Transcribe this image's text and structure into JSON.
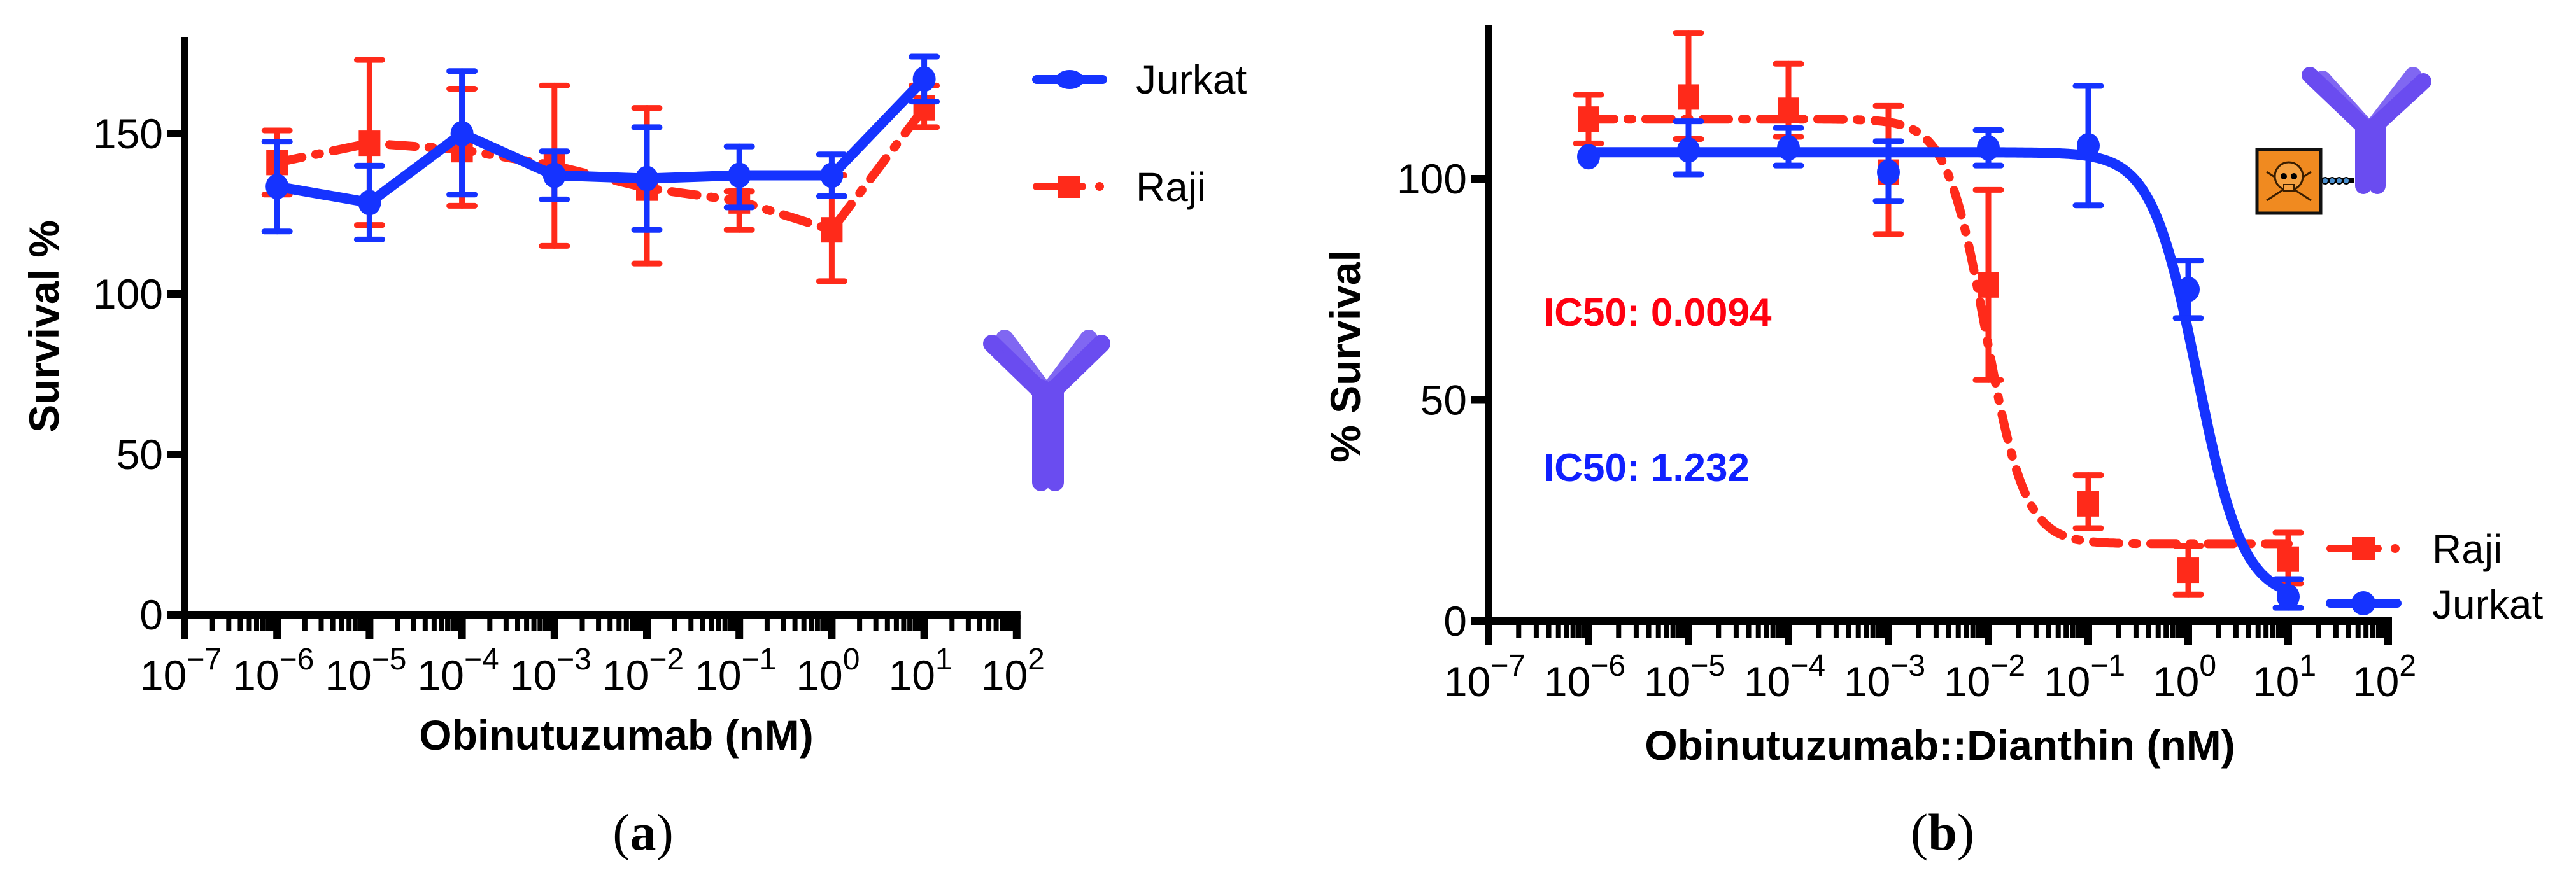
{
  "figure": {
    "captions": [
      {
        "open": "(",
        "letter": "a",
        "close": ")"
      },
      {
        "open": "(",
        "letter": "b",
        "close": ")"
      }
    ]
  },
  "colors": {
    "jurkat": "#1533ff",
    "raji": "#ff2a1a",
    "ic50_raji": "#ff0010",
    "ic50_jurkat": "#1020ff",
    "antibody": "#6a4cf0",
    "toxin_box": "#f08a20",
    "axis": "#000000"
  },
  "chart_data": [
    {
      "id": "a",
      "type": "line",
      "title": "",
      "xlabel": "Obinutuzumab (nM)",
      "ylabel": "Survival %",
      "xscale": "log",
      "xlim_exp": [
        -7,
        2
      ],
      "x_tick_labels": [
        "10^-7",
        "10^-6",
        "10^-5",
        "10^-4",
        "10^-3",
        "10^-2",
        "10^-1",
        "10^0",
        "10^1",
        "10^2"
      ],
      "ylim": [
        0,
        180
      ],
      "y_ticks": [
        0,
        50,
        100,
        150
      ],
      "grid": false,
      "legend": {
        "position": "upper-right-outside",
        "entries": [
          "Jurkat",
          "Raji"
        ]
      },
      "x": [
        1e-06,
        1e-05,
        0.0001,
        0.001,
        0.01,
        0.1,
        1,
        10
      ],
      "series": [
        {
          "name": "Jurkat",
          "marker": "circle",
          "line": "solid",
          "values": [
            133.5,
            128.5,
            150,
            137,
            136,
            137,
            137,
            167
          ],
          "err_low": [
            119.5,
            117,
            131,
            129.5,
            120,
            127,
            130.5,
            160
          ],
          "err_high": [
            147.5,
            140,
            169.5,
            144.5,
            152,
            146,
            143.5,
            174
          ]
        },
        {
          "name": "Raji",
          "marker": "square",
          "line": "dash-dot",
          "values": [
            141,
            147,
            145,
            140,
            133,
            129,
            120,
            158
          ],
          "err_low": [
            131,
            121.5,
            127.5,
            115,
            109.5,
            120,
            104,
            152
          ],
          "err_high": [
            151,
            173,
            164,
            165,
            158,
            132,
            137,
            165
          ]
        }
      ],
      "annotations": [
        {
          "type": "icon",
          "name": "antibody"
        }
      ]
    },
    {
      "id": "b",
      "type": "line",
      "title": "",
      "xlabel": "Obinutuzumab::Dianthin (nM)",
      "ylabel": "% Survival",
      "xscale": "log",
      "xlim_exp": [
        -7,
        2
      ],
      "x_tick_labels": [
        "10^-7",
        "10^-6",
        "10^-5",
        "10^-4",
        "10^-3",
        "10^-2",
        "10^-1",
        "10^0",
        "10^1",
        "10^2"
      ],
      "ylim": [
        0,
        135
      ],
      "y_ticks": [
        0,
        50,
        100
      ],
      "grid": false,
      "legend": {
        "position": "lower-right-outside",
        "entries": [
          "Raji",
          "Jurkat"
        ]
      },
      "x": [
        1e-06,
        1e-05,
        0.0001,
        0.001,
        0.01,
        0.1,
        1,
        10
      ],
      "series": [
        {
          "name": "Jurkat",
          "marker": "circle",
          "line": "solid",
          "values": [
            105,
            106.5,
            107,
            101.5,
            107,
            107.5,
            75,
            5.5
          ],
          "err_low": [
            105,
            101,
            103,
            95,
            103,
            94,
            68.5,
            3
          ],
          "err_high": [
            105,
            113,
            111.5,
            108.5,
            111,
            121,
            81.5,
            9.5
          ],
          "fit": {
            "top": 106,
            "bottom": 5,
            "ic50": 1.232,
            "hill": -1.9
          }
        },
        {
          "name": "Raji",
          "marker": "square",
          "line": "dash-dot",
          "values": [
            113.5,
            118.5,
            115.5,
            101.5,
            76,
            26.5,
            11.5,
            14
          ],
          "err_low": [
            108,
            109,
            109.5,
            87.5,
            54.5,
            21,
            6,
            8.5
          ],
          "err_high": [
            119,
            133,
            126,
            116.5,
            97.5,
            33,
            17,
            20
          ],
          "fit": {
            "top": 113.5,
            "bottom": 17.5,
            "ic50": 0.0094,
            "hill": -2.2
          }
        }
      ],
      "annotations": [
        {
          "type": "text",
          "label": "IC50: 0.0094",
          "series": "Raji"
        },
        {
          "type": "text",
          "label": "IC50: 1.232",
          "series": "Jurkat"
        },
        {
          "type": "icon",
          "name": "antibody-drug-conjugate"
        }
      ]
    }
  ]
}
